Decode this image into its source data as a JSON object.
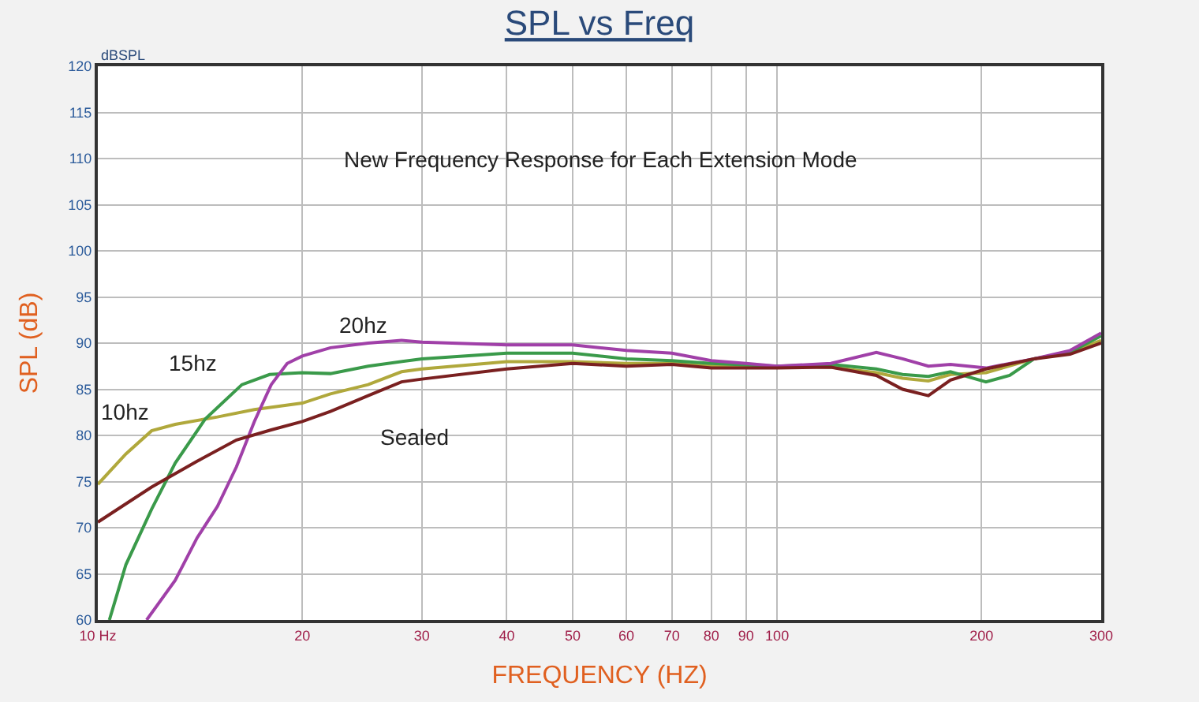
{
  "chart_data": {
    "type": "line",
    "title": "SPL vs Freq",
    "xlabel": "FREQUENCY (HZ)",
    "ylabel": "SPL (dB)",
    "annotations": [
      "dBSPL",
      "New Frequency Response for Each Extension Mode"
    ],
    "log": "x",
    "xlim": [
      10,
      300
    ],
    "ylim": [
      60,
      120
    ],
    "xticks": [
      {
        "value": 10,
        "label": "10 Hz"
      },
      20,
      30,
      40,
      50,
      60,
      70,
      80,
      90,
      100,
      200,
      300
    ],
    "yticks": [
      60,
      65,
      70,
      75,
      80,
      85,
      90,
      95,
      100,
      105,
      110,
      115,
      120
    ],
    "grid": true,
    "legend": false,
    "marker": "none",
    "line_style": "solid",
    "series": [
      {
        "name": "10hz",
        "color": "#b0a83c",
        "x": [
          10,
          11,
          12,
          13,
          15,
          17,
          20,
          22,
          25,
          28,
          30,
          40,
          50,
          60,
          70,
          80,
          100,
          120,
          140,
          153,
          167,
          180,
          203,
          239,
          270,
          300
        ],
        "values": [
          74.7,
          78,
          80.5,
          81.2,
          82,
          82.8,
          83.5,
          84.5,
          85.5,
          86.9,
          87.2,
          88,
          88,
          87.8,
          87.8,
          87.5,
          87.5,
          87.4,
          86.8,
          86.2,
          85.9,
          86.6,
          86.8,
          88.3,
          89,
          90.3
        ]
      },
      {
        "name": "15hz",
        "color": "#3a9a4a",
        "x": [
          10.4,
          11,
          12,
          13,
          14.4,
          16.3,
          17.9,
          20,
          22,
          25,
          30,
          40,
          50,
          60,
          70,
          80,
          100,
          120,
          140,
          153,
          167,
          180,
          203,
          220,
          239,
          270,
          300
        ],
        "values": [
          60,
          66,
          72,
          77,
          81.8,
          85.5,
          86.6,
          86.8,
          86.7,
          87.5,
          88.3,
          88.9,
          88.9,
          88.3,
          88.1,
          87.8,
          87.5,
          87.7,
          87.2,
          86.6,
          86.4,
          86.9,
          85.8,
          86.5,
          88.3,
          89,
          90.8
        ]
      },
      {
        "name": "20hz",
        "color": "#a040a8",
        "x": [
          11.8,
          13,
          14,
          15,
          16,
          17,
          18,
          19,
          20,
          22,
          25,
          28,
          30,
          40,
          50,
          60,
          70,
          80,
          90,
          100,
          120,
          140,
          153,
          167,
          180,
          203,
          239,
          270,
          300
        ],
        "values": [
          60,
          64.3,
          68.9,
          72.3,
          76.6,
          81.5,
          85.5,
          87.8,
          88.6,
          89.5,
          90,
          90.3,
          90.1,
          89.8,
          89.8,
          89.2,
          88.9,
          88.1,
          87.8,
          87.5,
          87.8,
          89,
          88.3,
          87.5,
          87.7,
          87.3,
          88.3,
          89.2,
          91.1
        ]
      },
      {
        "name": "Sealed",
        "color": "#7a2020",
        "x": [
          10,
          12,
          14,
          16,
          18,
          20,
          22,
          25,
          28,
          30,
          40,
          50,
          60,
          70,
          80,
          100,
          120,
          140,
          153,
          167,
          180,
          203,
          239,
          270,
          300
        ],
        "values": [
          70.6,
          74.4,
          77.2,
          79.5,
          80.6,
          81.5,
          82.6,
          84.3,
          85.8,
          86.1,
          87.2,
          87.8,
          87.5,
          87.7,
          87.3,
          87.3,
          87.4,
          86.5,
          85,
          84.3,
          86,
          87.2,
          88.3,
          88.8,
          90
        ]
      }
    ]
  }
}
